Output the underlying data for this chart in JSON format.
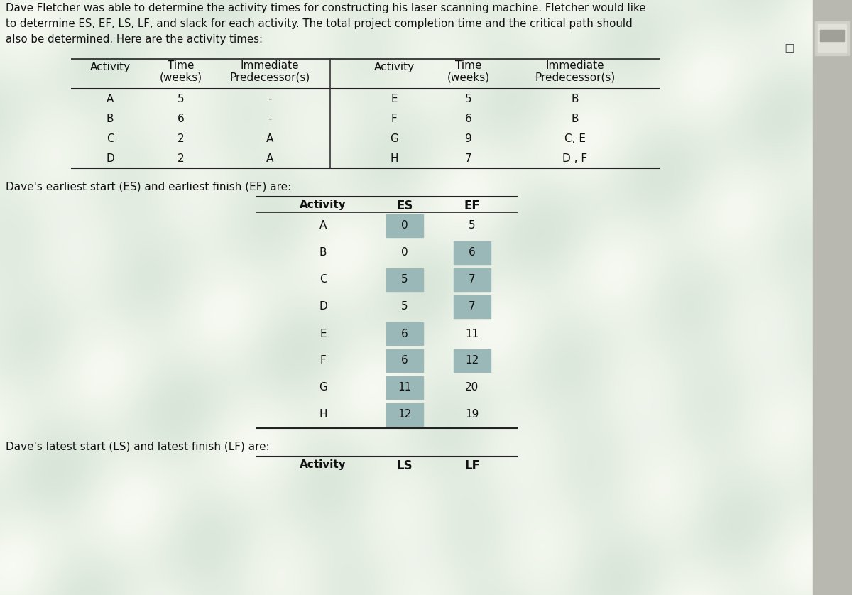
{
  "intro_text_line1": "Dave Fletcher was able to determine the activity times for constructing his laser scanning machine. Fletcher would like",
  "intro_text_line2": "to determine ES, EF, LS, LF, and slack for each activity. The total project completion time and the critical path should",
  "intro_text_line3": "also be determined. Here are the activity times:",
  "table1_left_rows": [
    [
      "A",
      "5",
      "-"
    ],
    [
      "B",
      "6",
      "-"
    ],
    [
      "C",
      "2",
      "A"
    ],
    [
      "D",
      "2",
      "A"
    ]
  ],
  "table1_right_rows": [
    [
      "E",
      "5",
      "B"
    ],
    [
      "F",
      "6",
      "B"
    ],
    [
      "G",
      "9",
      "C, E"
    ],
    [
      "H",
      "7",
      "D , F"
    ]
  ],
  "es_ef_label": "Dave's earliest start (ES) and earliest finish (EF) are:",
  "table2_rows": [
    [
      "A",
      "0",
      "5"
    ],
    [
      "B",
      "0",
      "6"
    ],
    [
      "C",
      "5",
      "7"
    ],
    [
      "D",
      "5",
      "7"
    ],
    [
      "E",
      "6",
      "11"
    ],
    [
      "F",
      "6",
      "12"
    ],
    [
      "G",
      "11",
      "20"
    ],
    [
      "H",
      "12",
      "19"
    ]
  ],
  "es_hi_rows": [
    0,
    2,
    4,
    5,
    6,
    7
  ],
  "ef_hi_rows": [
    1,
    2,
    3,
    5
  ],
  "ls_lf_label": "Dave's latest start (LS) and latest finish (LF) are:",
  "bg_main": "#e8ece8",
  "cell_hi_color": "#9bb8b8",
  "scrollbar_color": "#c0c0c0",
  "text_color": "#111111",
  "line_color": "#333333"
}
